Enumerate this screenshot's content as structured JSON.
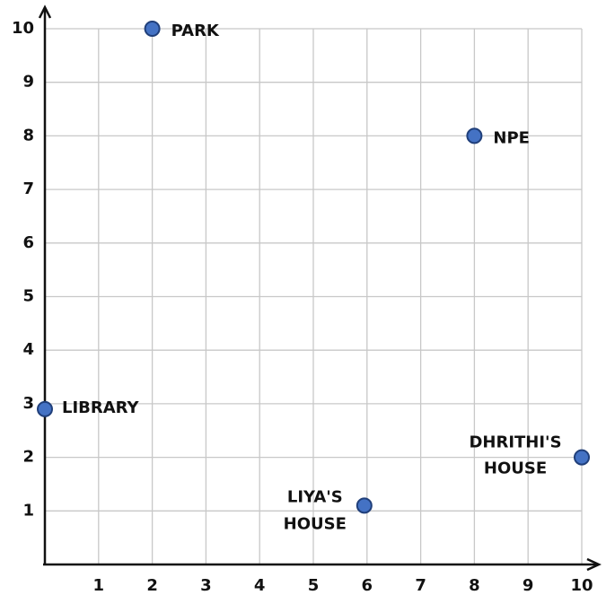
{
  "chart_data": {
    "type": "scatter",
    "labels": [
      [
        "PARK"
      ],
      [
        "NPE"
      ],
      [
        "LIBRARY"
      ],
      [
        "LIYA'S",
        "HOUSE"
      ],
      [
        "DHRITHI'S",
        "HOUSE"
      ]
    ],
    "x": [
      2,
      8,
      0,
      5.95,
      10
    ],
    "values": [
      10,
      8,
      2.9,
      1.1,
      2
    ],
    "color": "#4472c4",
    "xlim": [
      0,
      10
    ],
    "ylim": [
      0,
      10
    ],
    "xticks": [
      1,
      2,
      3,
      4,
      5,
      6,
      7,
      8,
      9,
      10
    ],
    "yticks": [
      1,
      2,
      3,
      4,
      5,
      6,
      7,
      8,
      9,
      10
    ],
    "grid": true
  }
}
